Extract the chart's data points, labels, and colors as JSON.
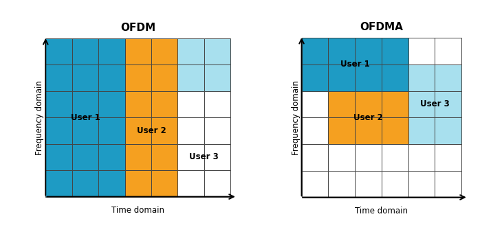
{
  "title_left": "OFDM",
  "title_right": "OFDMA",
  "xlabel": "Time domain",
  "ylabel": "Frequency domain",
  "color_blue": "#1E9BC4",
  "color_orange": "#F5A020",
  "color_cyan": "#A8E0EE",
  "color_white": "#FFFFFF",
  "color_grid": "#444444",
  "ofdm_grid": {
    "rows": 6,
    "cols": 7,
    "user1_label": "User 1",
    "user2_label": "User 2",
    "user3_label": "User 3",
    "user1_cols": [
      0,
      1,
      2
    ],
    "user1_rows": [
      0,
      1,
      2,
      3,
      4,
      5
    ],
    "user2_cols": [
      3,
      4
    ],
    "user2_rows": [
      0,
      1,
      2,
      3,
      4,
      5
    ],
    "user3_cols": [
      5,
      6
    ],
    "user3_rows": [
      0,
      1
    ],
    "user1_label_col": 1.5,
    "user1_label_row": 3,
    "user2_label_col": 3.5,
    "user2_label_row": 3.5,
    "user3_label_col": 5.5,
    "user3_label_row": 4.5
  },
  "ofdma_grid": {
    "rows": 6,
    "cols": 6,
    "user1_label": "User 1",
    "user2_label": "User 2",
    "user3_label": "User 3",
    "user1_cols": [
      0,
      1,
      2,
      3
    ],
    "user1_rows": [
      0,
      1
    ],
    "user2_cols": [
      1,
      2,
      3
    ],
    "user2_rows": [
      2,
      3
    ],
    "user3_cols": [
      4,
      5
    ],
    "user3_rows": [
      1,
      2,
      3
    ],
    "user1_label_col": 2.0,
    "user1_label_row": 4.5,
    "user2_label_col": 2.5,
    "user2_label_row": 2.5,
    "user3_label_col": 5.0,
    "user3_label_row": 2.5
  },
  "fig_width": 7.3,
  "fig_height": 3.41,
  "dpi": 100
}
